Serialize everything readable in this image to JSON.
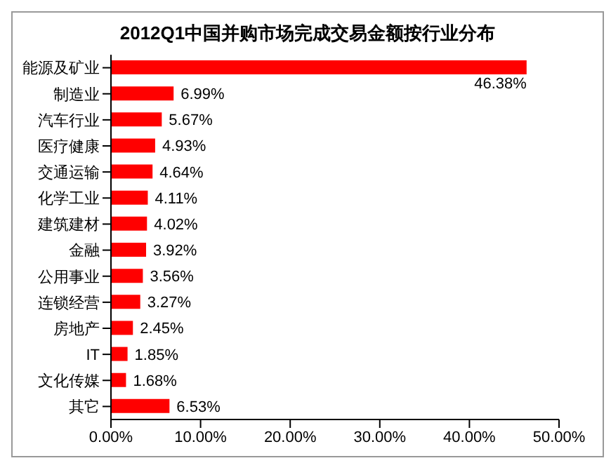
{
  "chart_data": {
    "type": "bar",
    "orientation": "horizontal",
    "title": "2012Q1中国并购市场完成交易金额按行业分布",
    "categories": [
      "能源及矿业",
      "制造业",
      "汽车行业",
      "医疗健康",
      "交通运输",
      "化学工业",
      "建筑建材",
      "金融",
      "公用事业",
      "连锁经营",
      "房地产",
      "IT",
      "文化传媒",
      "其它"
    ],
    "values": [
      46.38,
      6.99,
      5.67,
      4.93,
      4.64,
      4.11,
      4.02,
      3.92,
      3.56,
      3.27,
      2.45,
      1.85,
      1.68,
      6.53
    ],
    "value_labels": [
      "46.38%",
      "6.99%",
      "5.67%",
      "4.93%",
      "4.64%",
      "4.11%",
      "4.02%",
      "3.92%",
      "3.56%",
      "3.27%",
      "2.45%",
      "1.85%",
      "1.68%",
      "6.53%"
    ],
    "color": "#ff0000",
    "xlim": [
      0,
      50
    ],
    "xticks": [
      {
        "value": 0,
        "label": "0.00%"
      },
      {
        "value": 10,
        "label": "10.00%"
      },
      {
        "value": 20,
        "label": "20.00%"
      },
      {
        "value": 30,
        "label": "30.00%"
      },
      {
        "value": 40,
        "label": "40.00%"
      },
      {
        "value": 50,
        "label": "50.00%"
      }
    ],
    "grid": false
  }
}
